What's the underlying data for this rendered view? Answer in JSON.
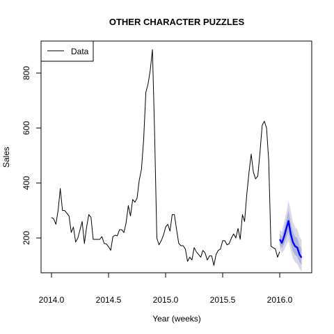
{
  "chart_data": {
    "type": "line",
    "title": "OTHER CHARACTER PUZZLES",
    "xlabel": "Year (weeks)",
    "ylabel": "Sales",
    "xlim": [
      2014.0,
      2016.2
    ],
    "ylim": [
      80,
      900
    ],
    "xticks": [
      2014.0,
      2014.5,
      2015.0,
      2015.5,
      2016.0
    ],
    "xtick_labels": [
      "2014.0",
      "2014.5",
      "2015.0",
      "2015.5",
      "2016.0"
    ],
    "yticks": [
      200,
      400,
      600,
      800
    ],
    "ytick_labels": [
      "200",
      "400",
      "600",
      "800"
    ],
    "legend": {
      "position": "top-left",
      "entries": [
        "Data"
      ]
    },
    "grid": false,
    "series": [
      {
        "name": "Data",
        "color": "#000000",
        "x": [
          2014.0,
          2014.0192,
          2014.0385,
          2014.0577,
          2014.0769,
          2014.0962,
          2014.1154,
          2014.1346,
          2014.1538,
          2014.1731,
          2014.1923,
          2014.2115,
          2014.2308,
          2014.25,
          2014.2692,
          2014.2885,
          2014.3077,
          2014.3269,
          2014.3462,
          2014.3654,
          2014.3846,
          2014.4038,
          2014.4231,
          2014.4423,
          2014.4615,
          2014.4808,
          2014.5,
          2014.5192,
          2014.5385,
          2014.5577,
          2014.5769,
          2014.5962,
          2014.6154,
          2014.6346,
          2014.6538,
          2014.6731,
          2014.6923,
          2014.7115,
          2014.7308,
          2014.75,
          2014.7692,
          2014.7885,
          2014.8077,
          2014.8269,
          2014.8462,
          2014.8654,
          2014.8846,
          2014.9038,
          2014.9231,
          2014.9423,
          2014.9615,
          2014.9808,
          2015.0,
          2015.0192,
          2015.0385,
          2015.0577,
          2015.0769,
          2015.0962,
          2015.1154,
          2015.1346,
          2015.1538,
          2015.1731,
          2015.1923,
          2015.2115,
          2015.2308,
          2015.25,
          2015.2692,
          2015.2885,
          2015.3077,
          2015.3269,
          2015.3462,
          2015.3654,
          2015.3846,
          2015.4038,
          2015.4231,
          2015.4423,
          2015.4615,
          2015.4808,
          2015.5,
          2015.5192,
          2015.5385,
          2015.5577,
          2015.5769,
          2015.5962,
          2015.6154,
          2015.6346,
          2015.6538,
          2015.6731,
          2015.6923,
          2015.7115,
          2015.7308,
          2015.75,
          2015.7692,
          2015.7885,
          2015.8077,
          2015.8269,
          2015.8462,
          2015.8654,
          2015.8846,
          2015.9038,
          2015.9231,
          2015.9423,
          2015.9615,
          2015.9808,
          2016.0
        ],
        "y": [
          275,
          270,
          250,
          300,
          380,
          300,
          300,
          290,
          280,
          220,
          240,
          185,
          200,
          230,
          260,
          180,
          240,
          285,
          275,
          195,
          195,
          195,
          195,
          205,
          180,
          178,
          168,
          155,
          205,
          210,
          208,
          230,
          230,
          220,
          255,
          318,
          280,
          340,
          330,
          345,
          410,
          450,
          560,
          730,
          760,
          810,
          885,
          580,
          200,
          175,
          190,
          210,
          240,
          250,
          225,
          285,
          285,
          230,
          180,
          172,
          172,
          160,
          115,
          130,
          120,
          165,
          150,
          140,
          130,
          155,
          145,
          120,
          135,
          135,
          100,
          140,
          155,
          160,
          190,
          190,
          175,
          180,
          200,
          215,
          200,
          235,
          195,
          285,
          260,
          360,
          440,
          505,
          440,
          415,
          425,
          510,
          610,
          625,
          600,
          480,
          170,
          165,
          160,
          130,
          150
        ]
      },
      {
        "name": "",
        "color": "#0000ff",
        "x": [
          2016.0,
          2016.0192,
          2016.0385,
          2016.0577,
          2016.0769,
          2016.0962,
          2016.1154,
          2016.1346,
          2016.1538,
          2016.1731,
          2016.1923
        ],
        "y": [
          195,
          182,
          205,
          235,
          262,
          215,
          185,
          170,
          165,
          140,
          128
        ]
      }
    ],
    "prediction_bands": [
      {
        "level": "95",
        "color": "#d8d8e8",
        "x": [
          2016.0,
          2016.0192,
          2016.0385,
          2016.0577,
          2016.0769,
          2016.0962,
          2016.1154,
          2016.1346,
          2016.1538,
          2016.1731,
          2016.1923
        ],
        "lower": [
          160,
          145,
          155,
          175,
          190,
          155,
          125,
          112,
          105,
          88,
          78
        ],
        "upper": [
          230,
          222,
          258,
          290,
          335,
          300,
          258,
          238,
          232,
          205,
          192
        ]
      },
      {
        "level": "80",
        "color": "#aeb4d8",
        "x": [
          2016.0,
          2016.0192,
          2016.0385,
          2016.0577,
          2016.0769,
          2016.0962,
          2016.1154,
          2016.1346,
          2016.1538,
          2016.1731,
          2016.1923
        ],
        "lower": [
          175,
          162,
          178,
          200,
          222,
          180,
          152,
          138,
          132,
          112,
          102
        ],
        "upper": [
          215,
          205,
          232,
          265,
          300,
          255,
          222,
          205,
          200,
          172,
          160
        ]
      }
    ]
  }
}
